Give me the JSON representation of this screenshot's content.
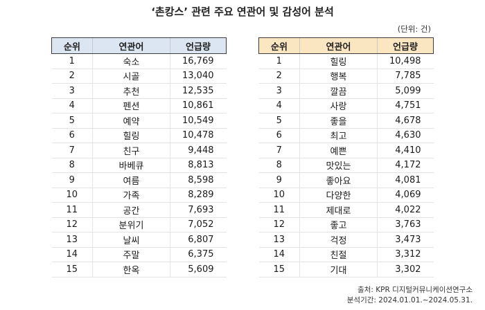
{
  "title": "‘촌캉스’ 관련 주요 연관어 및 감성어 분석",
  "unit_label": "(단위: 건)",
  "tables": {
    "related": {
      "header_color": "#dce6f2",
      "columns": [
        "순위",
        "연관어",
        "언급량"
      ],
      "rows": [
        {
          "rank": "1",
          "word": "숙소",
          "count": "16,769"
        },
        {
          "rank": "2",
          "word": "시골",
          "count": "13,040"
        },
        {
          "rank": "3",
          "word": "추천",
          "count": "12,535"
        },
        {
          "rank": "4",
          "word": "펜션",
          "count": "10,861"
        },
        {
          "rank": "5",
          "word": "예약",
          "count": "10,549"
        },
        {
          "rank": "6",
          "word": "힐링",
          "count": "10,478"
        },
        {
          "rank": "7",
          "word": "친구",
          "count": "9,448"
        },
        {
          "rank": "8",
          "word": "바베큐",
          "count": "8,813"
        },
        {
          "rank": "9",
          "word": "여름",
          "count": "8,598"
        },
        {
          "rank": "10",
          "word": "가족",
          "count": "8,289"
        },
        {
          "rank": "11",
          "word": "공간",
          "count": "7,693"
        },
        {
          "rank": "12",
          "word": "분위기",
          "count": "7,052"
        },
        {
          "rank": "13",
          "word": "날씨",
          "count": "6,807"
        },
        {
          "rank": "14",
          "word": "주말",
          "count": "6,375"
        },
        {
          "rank": "15",
          "word": "한옥",
          "count": "5,609"
        }
      ]
    },
    "sentiment": {
      "header_color": "#fbe6c2",
      "columns": [
        "순위",
        "연관어",
        "언급량"
      ],
      "rows": [
        {
          "rank": "1",
          "word": "힐링",
          "count": "10,498"
        },
        {
          "rank": "2",
          "word": "행복",
          "count": "7,785"
        },
        {
          "rank": "3",
          "word": "깔끔",
          "count": "5,099"
        },
        {
          "rank": "4",
          "word": "사랑",
          "count": "4,751"
        },
        {
          "rank": "5",
          "word": "좋을",
          "count": "4,678"
        },
        {
          "rank": "6",
          "word": "최고",
          "count": "4,630"
        },
        {
          "rank": "7",
          "word": "예쁜",
          "count": "4,410"
        },
        {
          "rank": "8",
          "word": "맛있는",
          "count": "4,172"
        },
        {
          "rank": "9",
          "word": "좋아요",
          "count": "4,081"
        },
        {
          "rank": "10",
          "word": "다양한",
          "count": "4,069"
        },
        {
          "rank": "11",
          "word": "제대로",
          "count": "4,022"
        },
        {
          "rank": "12",
          "word": "좋고",
          "count": "3,763"
        },
        {
          "rank": "13",
          "word": "걱정",
          "count": "3,473"
        },
        {
          "rank": "14",
          "word": "친절",
          "count": "3,312"
        },
        {
          "rank": "15",
          "word": "기대",
          "count": "3,302"
        }
      ]
    }
  },
  "footer": {
    "source": "출처: KPR 디지털커뮤니케이션연구소",
    "period": "분석기간: 2024.01.01.~2024.05.31."
  }
}
